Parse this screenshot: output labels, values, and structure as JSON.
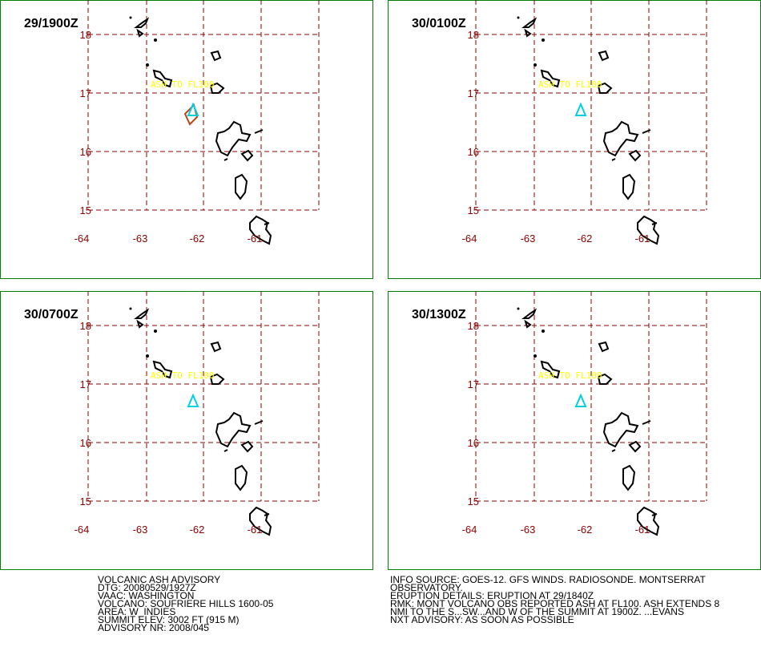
{
  "panels": [
    {
      "time": "29/1900Z",
      "ash_label": "ASH TO FL100"
    },
    {
      "time": "30/0100Z",
      "ash_label": "ASH TO FL100"
    },
    {
      "time": "30/0700Z",
      "ash_label": "ASH TO FL100"
    },
    {
      "time": "30/1300Z",
      "ash_label": "ASH TO FL100"
    }
  ],
  "lat_labels": [
    18,
    17,
    16,
    15
  ],
  "lon_labels": [
    -64,
    -63,
    -62,
    -61
  ],
  "advisory_left": [
    "VOLCANIC ASH ADVISORY",
    "DTG: 20080529/1927Z",
    "VAAC: WASHINGTON",
    "VOLCANO: SOUFRIERE HILLS 1600-05",
    "AREA: W_INDIES",
    "SUMMIT ELEV: 3002 FT (915 M)",
    "ADVISORY NR: 2008/045"
  ],
  "advisory_right": [
    "INFO SOURCE: GOES-12. GFS WINDS. RADIOSONDE. MONTSERRAT",
    "OBSERVATORY.",
    "ERUPTION DETAILS: ERUPTION AT 29/1840Z",
    "RMK: MONT VOLCANO OBS REPORTED ASH AT FL100. ASH EXTENDS 8",
    "NMI TO THE S...SW...AND W OF THE SUMMIT AT 1900Z. ...EVANS",
    "NXT ADVISORY: AS SOON AS POSSIBLE"
  ]
}
